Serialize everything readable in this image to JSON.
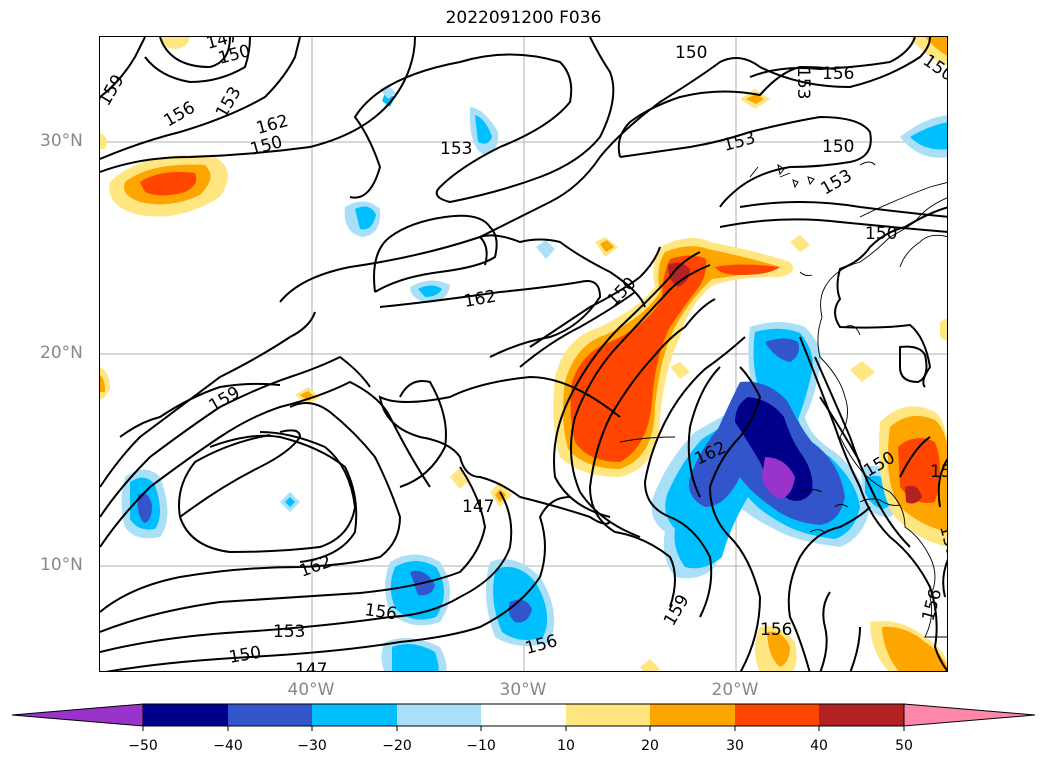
{
  "title": "2022091200 F036",
  "lat_labels": [
    "30°N",
    "20°N",
    "10°N"
  ],
  "lon_labels": [
    "40°W",
    "30°W",
    "20°W"
  ],
  "contour_labels": [
    "147",
    "150",
    "153",
    "156",
    "159",
    "162",
    "150",
    "153",
    "150",
    "153",
    "156",
    "153",
    "150",
    "150",
    "153",
    "150",
    "150",
    "159",
    "147",
    "162",
    "162",
    "156",
    "153",
    "150",
    "147",
    "156",
    "159",
    "156",
    "162",
    "150",
    "153",
    "156",
    "159",
    "156",
    "153",
    "150",
    "159",
    "150",
    "150",
    "156"
  ],
  "colorbar": {
    "ticks": [
      "−50",
      "−40",
      "−30",
      "−20",
      "−10",
      "10",
      "20",
      "30",
      "40",
      "50"
    ],
    "colors": [
      "#9933cc",
      "#00008b",
      "#3355cc",
      "#00bfff",
      "#aadff8",
      "#ffffff",
      "#ffe680",
      "#ffa500",
      "#ff4500",
      "#b22222",
      "#ff88aa"
    ]
  },
  "shading_colors": {
    "neg_light": "#aadff8",
    "neg_mid": "#00bfff",
    "neg_deep": "#3355cc",
    "neg_darker": "#00008b",
    "neg_extreme": "#9933cc",
    "pos_light": "#ffe680",
    "pos_mid": "#ffa500",
    "pos_deep": "#ff4500",
    "pos_darker": "#b22222"
  }
}
